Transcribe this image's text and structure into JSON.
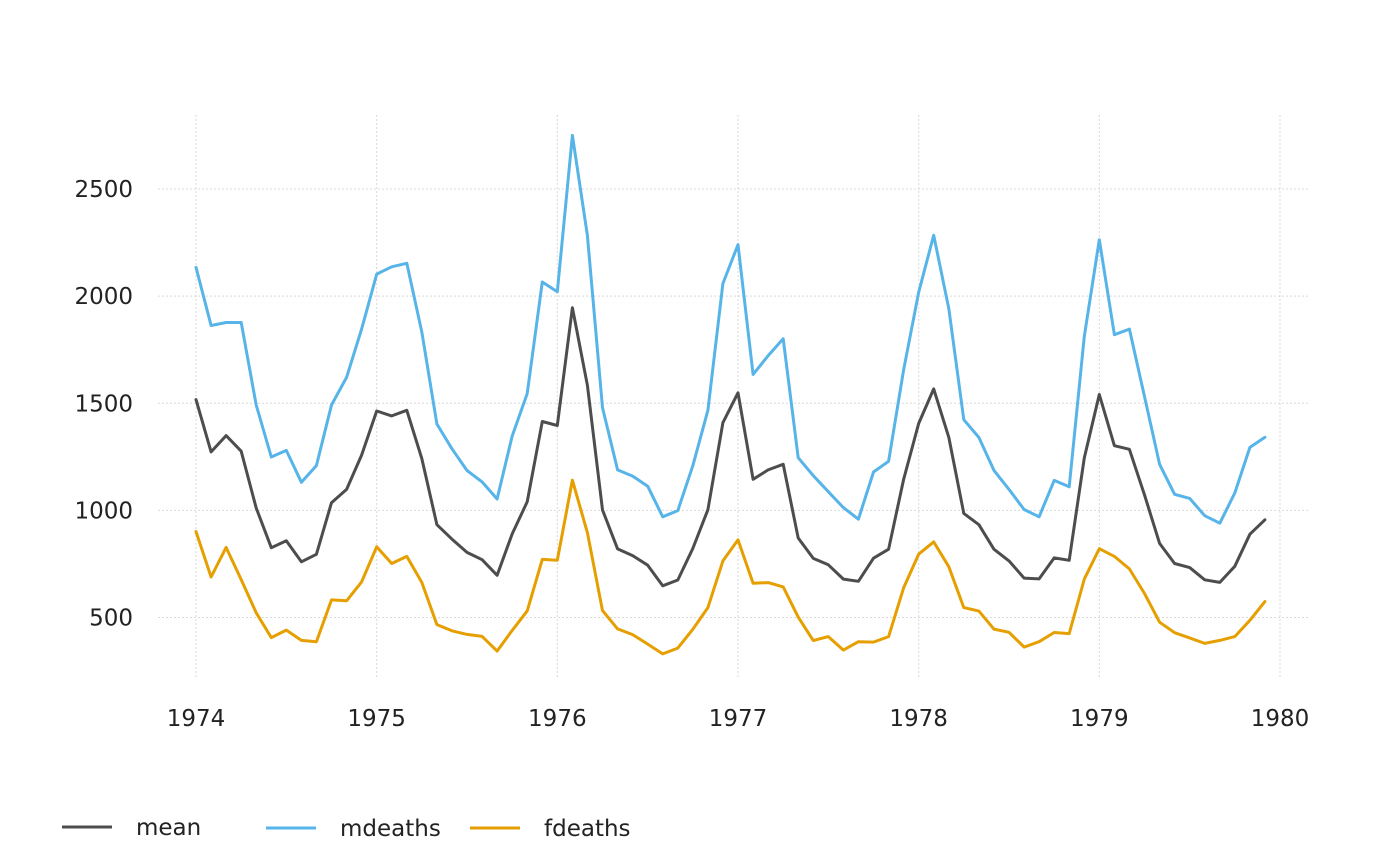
{
  "chart_data": {
    "type": "line",
    "title": "",
    "xlabel": "",
    "ylabel": "",
    "x_start": 1974,
    "x_step": 0.0833333,
    "xlim": [
      1974,
      1980
    ],
    "ylim": [
      220,
      2840
    ],
    "xticks": [
      1974,
      1975,
      1976,
      1977,
      1978,
      1979,
      1980
    ],
    "yticks": [
      500,
      1000,
      1500,
      2000,
      2500
    ],
    "grid": true,
    "legend_position": "bottom-left",
    "series": [
      {
        "name": "mean",
        "color": "#4d4d4d",
        "values": [
          1517,
          1273,
          1349,
          1276,
          1011,
          826,
          858,
          760,
          795,
          1036,
          1098,
          1258,
          1464,
          1441,
          1467,
          1242,
          933,
          866,
          804,
          770,
          697,
          890,
          1040,
          1415,
          1396,
          1946,
          1584,
          1002,
          820,
          789,
          744,
          648,
          675,
          822,
          1003,
          1409,
          1549,
          1145,
          1189,
          1215,
          871,
          776,
          746,
          679,
          669,
          777,
          819,
          1144,
          1406,
          1567,
          1341,
          986,
          933,
          819,
          764,
          684,
          680,
          778,
          767,
          1245,
          1541,
          1302,
          1285,
          1072,
          846,
          752,
          733,
          676,
          664,
          739,
          889,
          956
        ]
      },
      {
        "name": "mdeaths",
        "color": "#56b4e9",
        "values": [
          2134,
          1863,
          1877,
          1877,
          1492,
          1249,
          1280,
          1131,
          1209,
          1492,
          1621,
          1846,
          2103,
          2137,
          2153,
          1833,
          1403,
          1288,
          1186,
          1133,
          1053,
          1347,
          1545,
          2066,
          2020,
          2750,
          2283,
          1479,
          1189,
          1160,
          1113,
          970,
          999,
          1208,
          1467,
          2059,
          2240,
          1634,
          1722,
          1801,
          1246,
          1162,
          1087,
          1013,
          959,
          1179,
          1229,
          1655,
          2019,
          2284,
          1942,
          1423,
          1340,
          1187,
          1098,
          1004,
          970,
          1140,
          1110,
          1812,
          2263,
          1820,
          1846,
          1531,
          1215,
          1075,
          1056,
          975,
          940,
          1081,
          1294,
          1341
        ]
      },
      {
        "name": "fdeaths",
        "color": "#e69f00",
        "values": [
          901,
          689,
          827,
          677,
          522,
          406,
          441,
          393,
          387,
          582,
          578,
          666,
          830,
          752,
          785,
          664,
          467,
          438,
          421,
          412,
          343,
          440,
          531,
          771,
          767,
          1141,
          896,
          532,
          447,
          420,
          376,
          330,
          357,
          445,
          546,
          764,
          862,
          660,
          663,
          643,
          502,
          392,
          411,
          348,
          387,
          385,
          411,
          638,
          796,
          853,
          737,
          546,
          530,
          446,
          431,
          362,
          387,
          430,
          425,
          679,
          821,
          785,
          727,
          612,
          478,
          429,
          405,
          379,
          393,
          411,
          487,
          574
        ]
      }
    ]
  }
}
